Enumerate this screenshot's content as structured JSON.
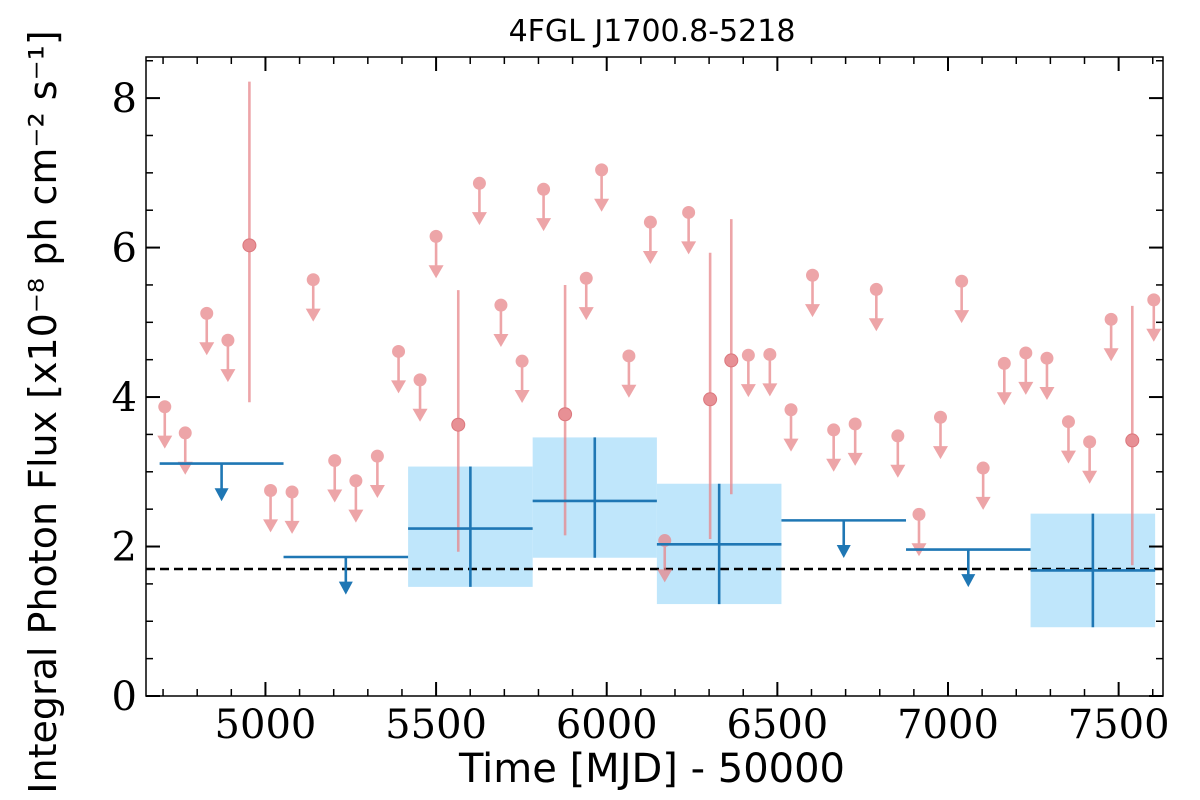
{
  "chart_data": {
    "type": "scatter",
    "title": "4FGL J1700.8-5218",
    "xlabel": "Time [MJD] - 50000",
    "ylabel": "Integral Photon Flux [x10⁻⁸ ph cm⁻² s⁻¹]",
    "xlim": [
      4650,
      7630
    ],
    "ylim": [
      0,
      8.55
    ],
    "xticks": [
      5000,
      5500,
      6000,
      6500,
      7000,
      7500
    ],
    "xtick_labels": [
      "5000",
      "5500",
      "6000",
      "6500",
      "7000",
      "7500"
    ],
    "yticks": [
      0,
      2,
      4,
      6,
      8
    ],
    "ytick_labels": [
      "0",
      "2",
      "4",
      "6",
      "8"
    ],
    "reference_level": 1.7,
    "colors": {
      "short_bins": "#e8878c",
      "long_bins": "#1f77b4",
      "long_band": "#bfe6fb",
      "reference": "#000000"
    },
    "short_upper_limits": [
      {
        "x": 4705,
        "y": 3.87
      },
      {
        "x": 4765,
        "y": 3.52
      },
      {
        "x": 4828,
        "y": 5.12
      },
      {
        "x": 4890,
        "y": 4.76
      },
      {
        "x": 5015,
        "y": 2.75
      },
      {
        "x": 5078,
        "y": 2.73
      },
      {
        "x": 5140,
        "y": 5.57
      },
      {
        "x": 5203,
        "y": 3.15
      },
      {
        "x": 5265,
        "y": 2.88
      },
      {
        "x": 5328,
        "y": 3.21
      },
      {
        "x": 5390,
        "y": 4.61
      },
      {
        "x": 5453,
        "y": 4.23
      },
      {
        "x": 5500,
        "y": 6.15
      },
      {
        "x": 5627,
        "y": 6.86
      },
      {
        "x": 5690,
        "y": 5.23
      },
      {
        "x": 5752,
        "y": 4.48
      },
      {
        "x": 5815,
        "y": 6.78
      },
      {
        "x": 5940,
        "y": 5.59
      },
      {
        "x": 5985,
        "y": 7.04
      },
      {
        "x": 6065,
        "y": 4.55
      },
      {
        "x": 6128,
        "y": 6.34
      },
      {
        "x": 6170,
        "y": 2.08
      },
      {
        "x": 6240,
        "y": 6.47
      },
      {
        "x": 6415,
        "y": 4.56
      },
      {
        "x": 6478,
        "y": 4.57
      },
      {
        "x": 6540,
        "y": 3.83
      },
      {
        "x": 6603,
        "y": 5.63
      },
      {
        "x": 6665,
        "y": 3.56
      },
      {
        "x": 6728,
        "y": 3.64
      },
      {
        "x": 6790,
        "y": 5.44
      },
      {
        "x": 6853,
        "y": 3.48
      },
      {
        "x": 6915,
        "y": 2.43
      },
      {
        "x": 6978,
        "y": 3.73
      },
      {
        "x": 7040,
        "y": 5.55
      },
      {
        "x": 7103,
        "y": 3.05
      },
      {
        "x": 7165,
        "y": 4.45
      },
      {
        "x": 7228,
        "y": 4.59
      },
      {
        "x": 7290,
        "y": 4.52
      },
      {
        "x": 7353,
        "y": 3.67
      },
      {
        "x": 7415,
        "y": 3.4
      },
      {
        "x": 7478,
        "y": 5.04
      },
      {
        "x": 7603,
        "y": 5.3
      }
    ],
    "short_detections": [
      {
        "x": 4953,
        "y": 6.03,
        "ylow": 3.93,
        "yhigh": 8.22
      },
      {
        "x": 5565,
        "y": 3.63,
        "ylow": 1.93,
        "yhigh": 5.43
      },
      {
        "x": 5878,
        "y": 3.77,
        "ylow": 2.15,
        "yhigh": 5.5
      },
      {
        "x": 6303,
        "y": 3.97,
        "ylow": 2.1,
        "yhigh": 5.93
      },
      {
        "x": 6365,
        "y": 4.49,
        "ylow": 2.7,
        "yhigh": 6.38
      },
      {
        "x": 7540,
        "y": 3.42,
        "ylow": 1.75,
        "yhigh": 5.22
      }
    ],
    "long_upper_limits": [
      {
        "xmin": 4690,
        "xmax": 5053,
        "y": 3.11
      },
      {
        "xmin": 5053,
        "xmax": 5418,
        "y": 1.86
      },
      {
        "xmin": 6512,
        "xmax": 6877,
        "y": 2.35
      },
      {
        "xmin": 6877,
        "xmax": 7242,
        "y": 1.96
      }
    ],
    "long_detections": [
      {
        "xmin": 5418,
        "xmax": 5783,
        "y": 2.24,
        "ylow": 1.46,
        "yhigh": 3.07
      },
      {
        "xmin": 5783,
        "xmax": 6147,
        "y": 2.61,
        "ylow": 1.85,
        "yhigh": 3.46
      },
      {
        "xmin": 6147,
        "xmax": 6512,
        "y": 2.03,
        "ylow": 1.23,
        "yhigh": 2.84
      },
      {
        "xmin": 7242,
        "xmax": 7607,
        "y": 1.68,
        "ylow": 0.92,
        "yhigh": 2.44
      }
    ]
  }
}
